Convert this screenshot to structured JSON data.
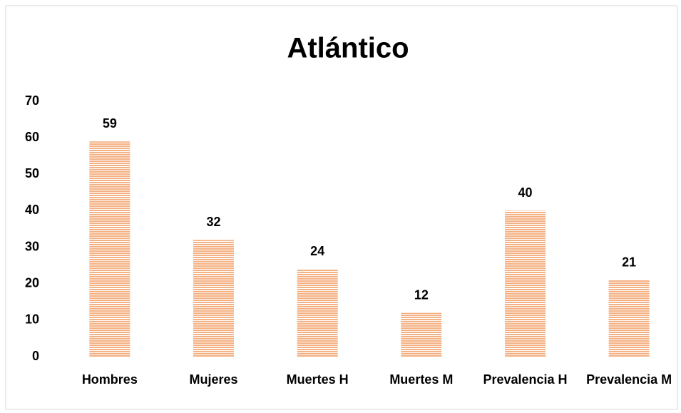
{
  "chart_data": {
    "type": "bar",
    "title": "Atlántico",
    "categories": [
      "Hombres",
      "Mujeres",
      "Muertes H",
      "Muertes M",
      "Prevalencia H",
      "Prevalencia M"
    ],
    "values": [
      59,
      32,
      24,
      12,
      40,
      21
    ],
    "color": "#f4b183",
    "ylim": [
      0,
      70
    ],
    "yticks": [
      0,
      10,
      20,
      30,
      40,
      50,
      60,
      70
    ],
    "grid": false
  }
}
